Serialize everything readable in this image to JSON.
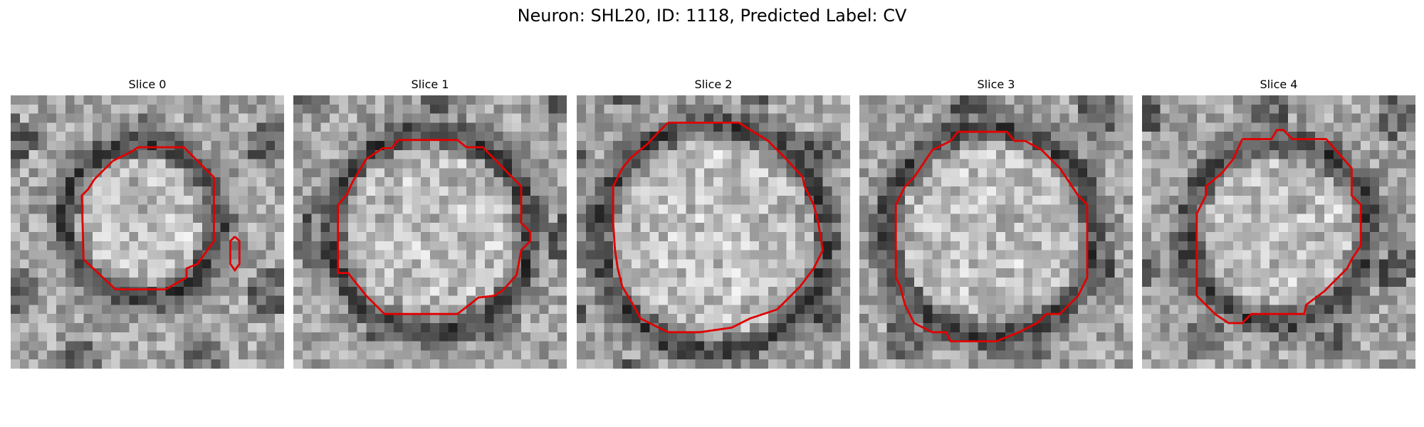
{
  "figure": {
    "title": "Neuron: SHL20, ID: 1118, Predicted Label: CV",
    "panels": [
      {
        "title": "Slice 0",
        "seed": 11,
        "contour": [
          [
            9,
            2
          ],
          [
            10,
            3
          ],
          [
            11,
            6
          ],
          [
            12,
            7
          ],
          [
            13,
            9
          ],
          [
            14,
            10
          ],
          [
            15,
            13
          ],
          [
            16,
            13
          ],
          [
            17,
            11
          ],
          [
            19,
            6
          ],
          [
            20,
            4
          ]
        ],
        "blob_a_frac": [
          0.48,
          0.46
        ],
        "ring_r": 8.5,
        "extra_mark": true
      },
      {
        "title": "Slice 1",
        "seed": 23,
        "contour": [],
        "blob_a_frac": [
          0.5,
          0.5
        ],
        "ring_r": 11.0,
        "extra_mark": false
      },
      {
        "title": "Slice 2",
        "seed": 37,
        "contour": [],
        "blob_a_frac": [
          0.5,
          0.52
        ],
        "ring_r": 12.5,
        "extra_mark": false
      },
      {
        "title": "Slice 3",
        "seed": 53,
        "contour": [],
        "blob_a_frac": [
          0.48,
          0.5
        ],
        "ring_r": 11.5,
        "extra_mark": false
      },
      {
        "title": "Slice 4",
        "seed": 71,
        "contour": [],
        "blob_a_frac": [
          0.5,
          0.5
        ],
        "ring_r": 10.0,
        "extra_mark": false
      }
    ]
  }
}
